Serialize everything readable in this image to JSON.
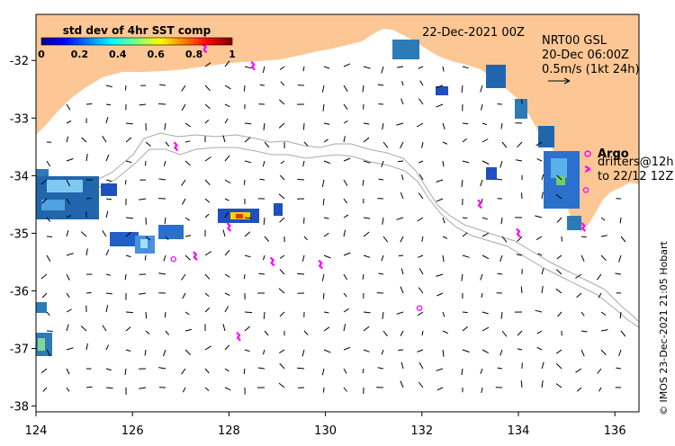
{
  "map": {
    "date_title": "22-Dec-2021 00Z",
    "product_line": "NRT00 GSL",
    "current_time": "20-Dec 06:00Z",
    "scale_label": "0.5m/s (1kt 24h)",
    "legend_argo": "Argo",
    "legend_drifters_1": "drifters@12h",
    "legend_drifters_2": "to 22/12 12Z",
    "copyright": "© IMOS 23-Dec-2021 21:05 Hobart",
    "colorbar": {
      "title": "std dev of 4hr SST comp",
      "ticks": [
        "0",
        "0.2",
        "0.4",
        "0.6",
        "0.8",
        "1"
      ]
    },
    "x_ticks": [
      "124",
      "126",
      "128",
      "130",
      "132",
      "134",
      "136"
    ],
    "y_ticks": [
      "-32",
      "-33",
      "-34",
      "-35",
      "-36",
      "-37",
      "-38"
    ],
    "extent": {
      "lon": [
        124,
        136.5
      ],
      "lat": [
        -38.1,
        -31.2
      ]
    },
    "colors": {
      "land": "#fcc794",
      "argo": "#ff00ff",
      "isobath": "#a9a9a9"
    }
  },
  "argo_floats": [
    {
      "lon": 126.85,
      "lat": -35.45
    },
    {
      "lon": 131.95,
      "lat": -36.3
    },
    {
      "lon": 135.4,
      "lat": -34.25
    }
  ],
  "drifter_tracks": [
    {
      "lon": 127.5,
      "lat": -31.8
    },
    {
      "lon": 128.5,
      "lat": -32.1
    },
    {
      "lon": 126.9,
      "lat": -33.5
    },
    {
      "lon": 127.3,
      "lat": -35.4
    },
    {
      "lon": 128.2,
      "lat": -36.8
    },
    {
      "lon": 128.9,
      "lat": -35.5
    },
    {
      "lon": 129.9,
      "lat": -35.55
    },
    {
      "lon": 133.2,
      "lat": -34.5
    },
    {
      "lon": 134.0,
      "lat": -35.0
    },
    {
      "lon": 135.35,
      "lat": -34.9
    },
    {
      "lon": 128.0,
      "lat": -34.9
    }
  ]
}
